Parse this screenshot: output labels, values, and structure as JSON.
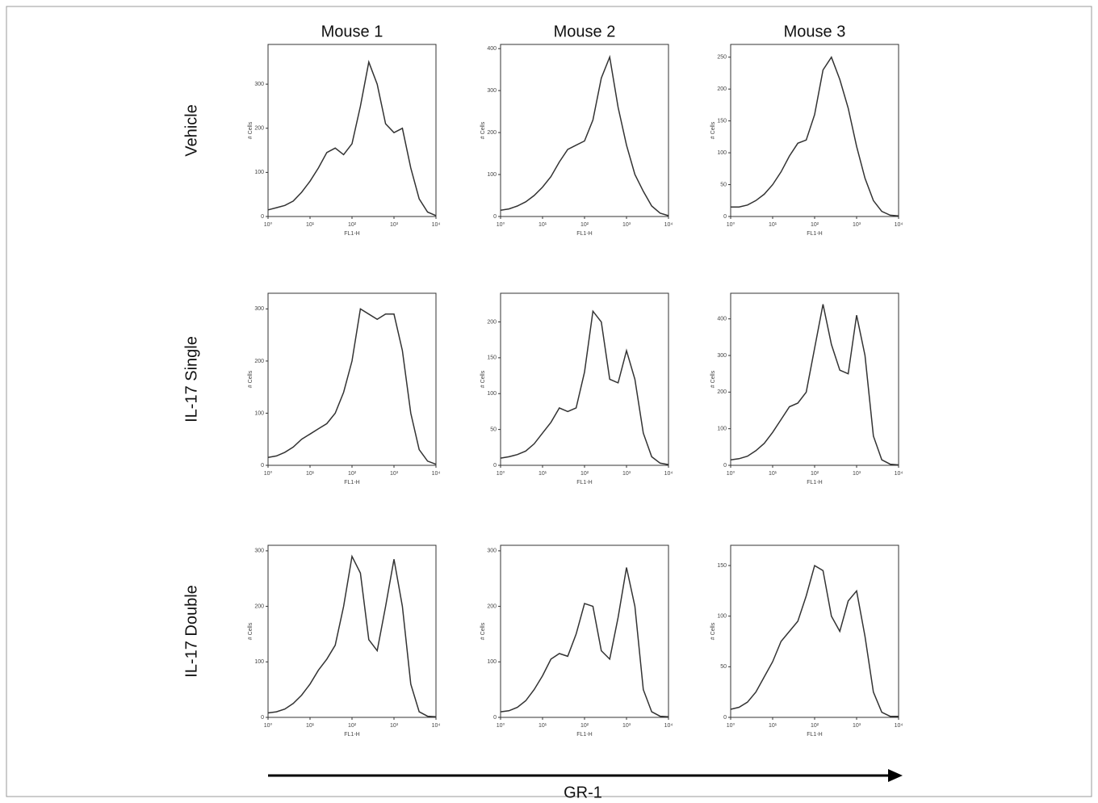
{
  "column_labels": [
    "Mouse 1",
    "Mouse 2",
    "Mouse 3"
  ],
  "row_labels": [
    "Vehicle",
    "IL-17 Single",
    "IL-17 Double"
  ],
  "x_axis_title": "GR-1",
  "chart_data": [
    {
      "type": "line",
      "x_label": "FL1-H",
      "y_label": "# Cells",
      "log_x": true,
      "xlim": [
        1,
        10000
      ],
      "xticks": [
        {
          "value": 1,
          "label": "10⁰"
        },
        {
          "value": 10,
          "label": "10¹"
        },
        {
          "value": 100,
          "label": "10²"
        },
        {
          "value": 1000,
          "label": "10³"
        },
        {
          "value": 10000,
          "label": "10⁴"
        }
      ],
      "ylim": [
        0,
        390
      ],
      "yticks": [
        0,
        100,
        200,
        300
      ],
      "x": [
        1,
        1.585,
        2.512,
        3.981,
        6.31,
        10,
        15.85,
        25.12,
        39.81,
        63.1,
        100,
        158.5,
        251.2,
        398.1,
        631,
        1000,
        1585,
        2512,
        3981,
        6310,
        10000
      ],
      "series": [
        {
          "color": "#333333",
          "values": [
            15,
            20,
            25,
            35,
            55,
            80,
            110,
            145,
            155,
            140,
            165,
            250,
            350,
            300,
            210,
            190,
            200,
            110,
            40,
            10,
            2
          ]
        }
      ]
    },
    {
      "type": "line",
      "x_label": "FL1-H",
      "y_label": "# Cells",
      "log_x": true,
      "xlim": [
        1,
        10000
      ],
      "xticks": [
        {
          "value": 1,
          "label": "10⁰"
        },
        {
          "value": 10,
          "label": "10¹"
        },
        {
          "value": 100,
          "label": "10²"
        },
        {
          "value": 1000,
          "label": "10³"
        },
        {
          "value": 10000,
          "label": "10⁴"
        }
      ],
      "ylim": [
        0,
        410
      ],
      "yticks": [
        0,
        100,
        200,
        300,
        400
      ],
      "x": [
        1,
        1.585,
        2.512,
        3.981,
        6.31,
        10,
        15.85,
        25.12,
        39.81,
        63.1,
        100,
        158.5,
        251.2,
        398.1,
        631,
        1000,
        1585,
        2512,
        3981,
        6310,
        10000
      ],
      "series": [
        {
          "color": "#333333",
          "values": [
            15,
            18,
            25,
            35,
            50,
            70,
            95,
            130,
            160,
            170,
            180,
            230,
            330,
            380,
            260,
            170,
            100,
            60,
            25,
            8,
            2
          ]
        }
      ]
    },
    {
      "type": "line",
      "x_label": "FL1-H",
      "y_label": "# Cells",
      "log_x": true,
      "xlim": [
        1,
        10000
      ],
      "xticks": [
        {
          "value": 1,
          "label": "10⁰"
        },
        {
          "value": 10,
          "label": "10¹"
        },
        {
          "value": 100,
          "label": "10²"
        },
        {
          "value": 1000,
          "label": "10³"
        },
        {
          "value": 10000,
          "label": "10⁴"
        }
      ],
      "ylim": [
        0,
        270
      ],
      "yticks": [
        0,
        50,
        100,
        150,
        200,
        250
      ],
      "x": [
        1,
        1.585,
        2.512,
        3.981,
        6.31,
        10,
        15.85,
        25.12,
        39.81,
        63.1,
        100,
        158.5,
        251.2,
        398.1,
        631,
        1000,
        1585,
        2512,
        3981,
        6310,
        10000
      ],
      "series": [
        {
          "color": "#333333",
          "values": [
            15,
            15,
            18,
            25,
            35,
            50,
            70,
            95,
            115,
            120,
            160,
            230,
            250,
            215,
            170,
            110,
            60,
            25,
            8,
            2,
            1
          ]
        }
      ]
    },
    {
      "type": "line",
      "x_label": "FL1-H",
      "y_label": "# Cells",
      "log_x": true,
      "xlim": [
        1,
        10000
      ],
      "xticks": [
        {
          "value": 1,
          "label": "10⁰"
        },
        {
          "value": 10,
          "label": "10¹"
        },
        {
          "value": 100,
          "label": "10²"
        },
        {
          "value": 1000,
          "label": "10³"
        },
        {
          "value": 10000,
          "label": "10⁴"
        }
      ],
      "ylim": [
        0,
        330
      ],
      "yticks": [
        0,
        100,
        200,
        300
      ],
      "x": [
        1,
        1.585,
        2.512,
        3.981,
        6.31,
        10,
        15.85,
        25.12,
        39.81,
        63.1,
        100,
        158.5,
        251.2,
        398.1,
        631,
        1000,
        1585,
        2512,
        3981,
        6310,
        10000
      ],
      "series": [
        {
          "color": "#333333",
          "values": [
            15,
            18,
            25,
            35,
            50,
            60,
            70,
            80,
            100,
            140,
            200,
            300,
            290,
            280,
            290,
            290,
            220,
            100,
            30,
            8,
            2
          ]
        }
      ]
    },
    {
      "type": "line",
      "x_label": "FL1-H",
      "y_label": "# Cells",
      "log_x": true,
      "xlim": [
        1,
        10000
      ],
      "xticks": [
        {
          "value": 1,
          "label": "10⁰"
        },
        {
          "value": 10,
          "label": "10¹"
        },
        {
          "value": 100,
          "label": "10²"
        },
        {
          "value": 1000,
          "label": "10³"
        },
        {
          "value": 10000,
          "label": "10⁴"
        }
      ],
      "ylim": [
        0,
        240
      ],
      "yticks": [
        0,
        50,
        100,
        150,
        200
      ],
      "x": [
        1,
        1.585,
        2.512,
        3.981,
        6.31,
        10,
        15.85,
        25.12,
        39.81,
        63.1,
        100,
        158.5,
        251.2,
        398.1,
        631,
        1000,
        1585,
        2512,
        3981,
        6310,
        10000
      ],
      "series": [
        {
          "color": "#333333",
          "values": [
            10,
            12,
            15,
            20,
            30,
            45,
            60,
            80,
            75,
            80,
            130,
            215,
            200,
            120,
            115,
            160,
            120,
            45,
            12,
            3,
            1
          ]
        }
      ]
    },
    {
      "type": "line",
      "x_label": "FL1-H",
      "y_label": "# Cells",
      "log_x": true,
      "xlim": [
        1,
        10000
      ],
      "xticks": [
        {
          "value": 1,
          "label": "10⁰"
        },
        {
          "value": 10,
          "label": "10¹"
        },
        {
          "value": 100,
          "label": "10²"
        },
        {
          "value": 1000,
          "label": "10³"
        },
        {
          "value": 10000,
          "label": "10⁴"
        }
      ],
      "ylim": [
        0,
        470
      ],
      "yticks": [
        0,
        100,
        200,
        300,
        400
      ],
      "x": [
        1,
        1.585,
        2.512,
        3.981,
        6.31,
        10,
        15.85,
        25.12,
        39.81,
        63.1,
        100,
        158.5,
        251.2,
        398.1,
        631,
        1000,
        1585,
        2512,
        3981,
        6310,
        10000
      ],
      "series": [
        {
          "color": "#333333",
          "values": [
            15,
            18,
            25,
            40,
            60,
            90,
            125,
            160,
            170,
            200,
            320,
            440,
            330,
            260,
            250,
            410,
            300,
            80,
            15,
            3,
            1
          ]
        }
      ]
    },
    {
      "type": "line",
      "x_label": "FL1-H",
      "y_label": "# Cells",
      "log_x": true,
      "xlim": [
        1,
        10000
      ],
      "xticks": [
        {
          "value": 1,
          "label": "10⁰"
        },
        {
          "value": 10,
          "label": "10¹"
        },
        {
          "value": 100,
          "label": "10²"
        },
        {
          "value": 1000,
          "label": "10³"
        },
        {
          "value": 10000,
          "label": "10⁴"
        }
      ],
      "ylim": [
        0,
        310
      ],
      "yticks": [
        0,
        100,
        200,
        300
      ],
      "x": [
        1,
        1.585,
        2.512,
        3.981,
        6.31,
        10,
        15.85,
        25.12,
        39.81,
        63.1,
        100,
        158.5,
        251.2,
        398.1,
        631,
        1000,
        1585,
        2512,
        3981,
        6310,
        10000
      ],
      "series": [
        {
          "color": "#333333",
          "values": [
            8,
            10,
            15,
            25,
            40,
            60,
            85,
            105,
            130,
            200,
            290,
            260,
            140,
            120,
            200,
            285,
            200,
            60,
            10,
            2,
            1
          ]
        }
      ]
    },
    {
      "type": "line",
      "x_label": "FL1-H",
      "y_label": "# Cells",
      "log_x": true,
      "xlim": [
        1,
        10000
      ],
      "xticks": [
        {
          "value": 1,
          "label": "10⁰"
        },
        {
          "value": 10,
          "label": "10¹"
        },
        {
          "value": 100,
          "label": "10²"
        },
        {
          "value": 1000,
          "label": "10³"
        },
        {
          "value": 10000,
          "label": "10⁴"
        }
      ],
      "ylim": [
        0,
        310
      ],
      "yticks": [
        0,
        100,
        200,
        300
      ],
      "x": [
        1,
        1.585,
        2.512,
        3.981,
        6.31,
        10,
        15.85,
        25.12,
        39.81,
        63.1,
        100,
        158.5,
        251.2,
        398.1,
        631,
        1000,
        1585,
        2512,
        3981,
        6310,
        10000
      ],
      "series": [
        {
          "color": "#333333",
          "values": [
            10,
            12,
            18,
            30,
            50,
            75,
            105,
            115,
            110,
            150,
            205,
            200,
            120,
            105,
            180,
            270,
            200,
            50,
            10,
            2,
            1
          ]
        }
      ]
    },
    {
      "type": "line",
      "x_label": "FL1-H",
      "y_label": "# Cells",
      "log_x": true,
      "xlim": [
        1,
        10000
      ],
      "xticks": [
        {
          "value": 1,
          "label": "10⁰"
        },
        {
          "value": 10,
          "label": "10¹"
        },
        {
          "value": 100,
          "label": "10²"
        },
        {
          "value": 1000,
          "label": "10³"
        },
        {
          "value": 10000,
          "label": "10⁴"
        }
      ],
      "ylim": [
        0,
        170
      ],
      "yticks": [
        0,
        50,
        100,
        150
      ],
      "x": [
        1,
        1.585,
        2.512,
        3.981,
        6.31,
        10,
        15.85,
        25.12,
        39.81,
        63.1,
        100,
        158.5,
        251.2,
        398.1,
        631,
        1000,
        1585,
        2512,
        3981,
        6310,
        10000
      ],
      "series": [
        {
          "color": "#333333",
          "values": [
            8,
            10,
            15,
            25,
            40,
            55,
            75,
            85,
            95,
            120,
            150,
            145,
            100,
            85,
            115,
            125,
            80,
            25,
            5,
            1,
            1
          ]
        }
      ]
    }
  ]
}
